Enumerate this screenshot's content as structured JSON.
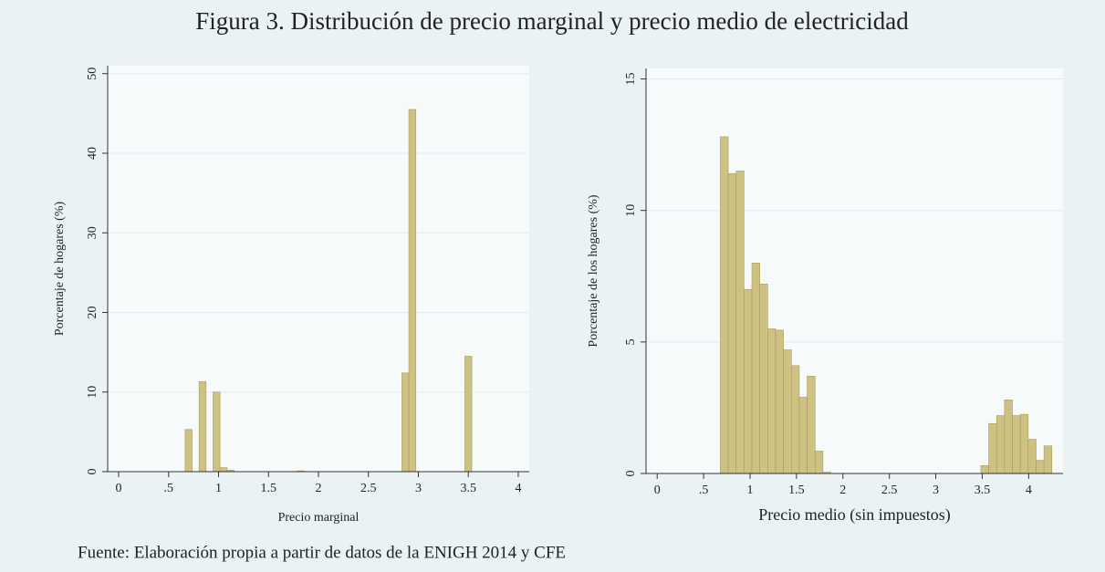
{
  "title": "Figura 3. Distribución de precio marginal y precio medio de electricidad",
  "source": "Fuente: Elaboración propia a partir de datos de la ENIGH 2014 y CFE",
  "chart_data": [
    {
      "type": "histogram",
      "x_label": "Precio marginal",
      "y_label": "Porcentaje de hogares (%)",
      "color": "#cdc184",
      "bins": [
        0.665,
        0.735,
        0.805,
        0.875,
        0.945,
        1.015,
        1.085,
        1.155,
        1.225,
        1.295,
        1.365,
        1.435,
        1.505,
        1.575,
        1.645,
        1.715,
        1.785,
        1.855,
        1.925,
        1.995,
        2.065,
        2.135,
        2.205,
        2.275,
        2.345,
        2.415,
        2.485,
        2.555,
        2.625,
        2.695,
        2.765,
        2.835,
        2.905,
        2.975,
        3.045,
        3.115,
        3.185,
        3.255,
        3.325,
        3.395,
        3.465,
        3.535
      ],
      "values": [
        5.3,
        0,
        11.3,
        0,
        10,
        0.5,
        0.2,
        0,
        0,
        0,
        0,
        0,
        0,
        0,
        0,
        0,
        0.1,
        0,
        0,
        0,
        0,
        0,
        0,
        0,
        0,
        0,
        0,
        0,
        0,
        0,
        0,
        12.4,
        45.5,
        0,
        0,
        0,
        0,
        0,
        0,
        0,
        14.5
      ],
      "xlim": [
        -0.11,
        4.11
      ],
      "ylim": [
        0,
        51
      ],
      "xticks": [
        0,
        {
          "value": 0.5,
          "label": ".5"
        },
        1,
        1.5,
        2,
        2.5,
        3,
        3.5,
        4
      ],
      "yticks": [
        0,
        10,
        20,
        30,
        40,
        50
      ],
      "grid": true
    },
    {
      "type": "histogram",
      "x_label": "Precio medio (sin impuestos)",
      "y_label": "Porcentaje de los hogares (%)",
      "color": "#cdc184",
      "bins": [
        0.68,
        0.765,
        0.85,
        0.935,
        1.02,
        1.105,
        1.19,
        1.275,
        1.36,
        1.445,
        1.53,
        1.615,
        1.7,
        1.785,
        1.87,
        1.955,
        2.04,
        2.125,
        2.21,
        2.295,
        2.38,
        2.465,
        2.55,
        2.635,
        2.72,
        2.805,
        2.89,
        2.975,
        3.06,
        3.145,
        3.23,
        3.315,
        3.4,
        3.485,
        3.57,
        3.655,
        3.74,
        3.825,
        3.91,
        3.995,
        4.08,
        4.165,
        4.25
      ],
      "values": [
        12.8,
        11.4,
        11.5,
        7.0,
        8.0,
        7.2,
        5.5,
        5.45,
        4.7,
        4.1,
        2.9,
        3.7,
        0.85,
        0.05,
        0,
        0,
        0,
        0,
        0,
        0,
        0,
        0,
        0,
        0,
        0,
        0,
        0,
        0,
        0,
        0,
        0,
        0,
        0,
        0.3,
        1.9,
        2.2,
        2.8,
        2.2,
        2.25,
        1.3,
        0.5,
        1.05
      ],
      "xlim": [
        -0.12,
        4.37
      ],
      "ylim": [
        0,
        15.4
      ],
      "xticks": [
        0,
        {
          "value": 0.5,
          "label": ".5"
        },
        1,
        1.5,
        2,
        2.5,
        3,
        3.5,
        4
      ],
      "yticks": [
        0,
        5,
        10,
        15
      ],
      "grid": true
    }
  ]
}
